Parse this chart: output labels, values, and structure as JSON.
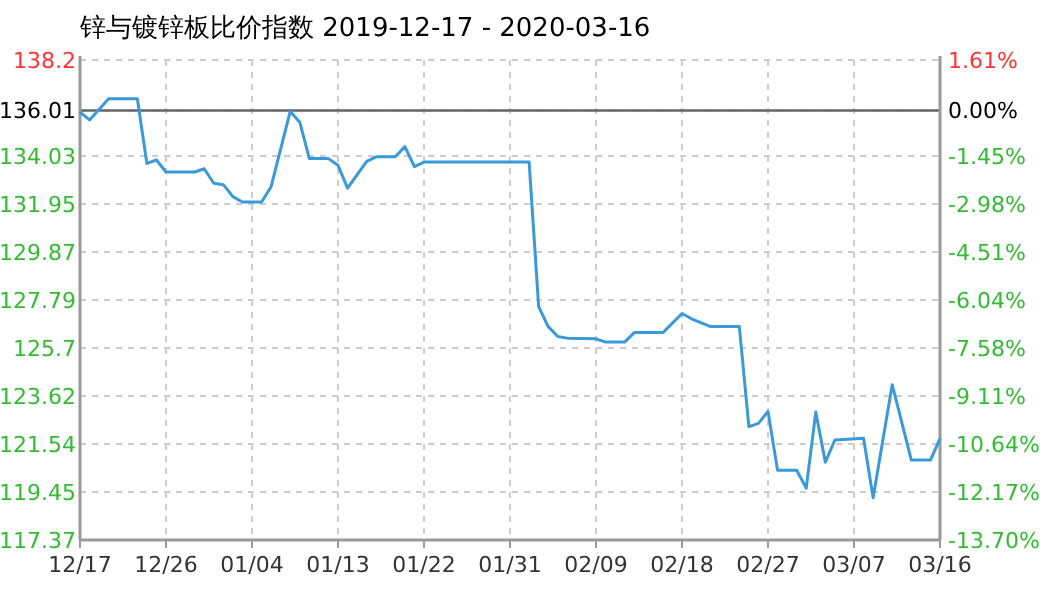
{
  "chart_data": {
    "type": "line",
    "title": "锌与镀锌板比价指数 2019-12-17 - 2020-03-16",
    "x": [
      "2019-12-17",
      "2019-12-18",
      "2019-12-20",
      "2019-12-23",
      "2019-12-24",
      "2019-12-25",
      "2019-12-26",
      "2019-12-29",
      "2019-12-30",
      "2019-12-31",
      "2020-01-01",
      "2020-01-02",
      "2020-01-03",
      "2020-01-05",
      "2020-01-06",
      "2020-01-08",
      "2020-01-09",
      "2020-01-10",
      "2020-01-12",
      "2020-01-13",
      "2020-01-14",
      "2020-01-16",
      "2020-01-17",
      "2020-01-19",
      "2020-01-20",
      "2020-01-21",
      "2020-01-22",
      "2020-02-02",
      "2020-02-03",
      "2020-02-04",
      "2020-02-05",
      "2020-02-06",
      "2020-02-09",
      "2020-02-10",
      "2020-02-12",
      "2020-02-13",
      "2020-02-16",
      "2020-02-18",
      "2020-02-19",
      "2020-02-21",
      "2020-02-24",
      "2020-02-25",
      "2020-02-26",
      "2020-02-27",
      "2020-02-28",
      "2020-03-01",
      "2020-03-02",
      "2020-03-03",
      "2020-03-04",
      "2020-03-05",
      "2020-03-08",
      "2020-03-09",
      "2020-03-11",
      "2020-03-13",
      "2020-03-15",
      "2020-03-16"
    ],
    "series": [
      {
        "color": "#3a9ad9",
        "values": [
          135.94,
          135.6,
          136.52,
          136.52,
          133.71,
          133.86,
          133.34,
          133.34,
          133.48,
          132.85,
          132.79,
          132.27,
          132.04,
          132.04,
          132.7,
          135.97,
          135.5,
          133.92,
          133.92,
          133.63,
          132.64,
          133.8,
          134.0,
          134.0,
          134.44,
          133.57,
          133.77,
          133.77,
          127.5,
          126.63,
          126.2,
          126.13,
          126.1,
          125.96,
          125.96,
          126.37,
          126.37,
          127.2,
          126.97,
          126.63,
          126.63,
          122.29,
          122.43,
          122.95,
          120.4,
          120.4,
          119.62,
          122.92,
          120.75,
          121.71,
          121.79,
          119.2,
          124.11,
          120.84,
          120.84,
          121.77
        ]
      }
    ],
    "xlim": [
      "2019-12-17",
      "2020-03-16"
    ],
    "xticks": [
      {
        "value": "2019-12-17",
        "label": "12/17"
      },
      {
        "value": "2019-12-26",
        "label": "12/26"
      },
      {
        "value": "2020-01-04",
        "label": "01/04"
      },
      {
        "value": "2020-01-13",
        "label": "01/13"
      },
      {
        "value": "2020-01-22",
        "label": "01/22"
      },
      {
        "value": "2020-01-31",
        "label": "01/31"
      },
      {
        "value": "2020-02-09",
        "label": "02/09"
      },
      {
        "value": "2020-02-18",
        "label": "02/18"
      },
      {
        "value": "2020-02-27",
        "label": "02/27"
      },
      {
        "value": "2020-03-07",
        "label": "03/07"
      },
      {
        "value": "2020-03-16",
        "label": "03/16"
      }
    ],
    "ylim": [
      117.37,
      138.2
    ],
    "yticks": [
      117.37,
      119.45,
      121.54,
      123.62,
      125.7,
      127.79,
      129.87,
      131.95,
      134.03,
      136.01,
      138.2
    ],
    "y2lim": [
      -13.7,
      1.61
    ],
    "y2ticks": [
      {
        "value": -13.7,
        "label": "-13.70%"
      },
      {
        "value": -12.17,
        "label": "-12.17%"
      },
      {
        "value": -10.64,
        "label": "-10.64%"
      },
      {
        "value": -9.11,
        "label": "-9.11%"
      },
      {
        "value": -7.58,
        "label": "-7.58%"
      },
      {
        "value": -6.04,
        "label": "-6.04%"
      },
      {
        "value": -4.51,
        "label": "-4.51%"
      },
      {
        "value": -2.98,
        "label": "-2.98%"
      },
      {
        "value": -1.45,
        "label": "-1.45%"
      },
      {
        "value": 0,
        "label": "0.00%"
      },
      {
        "value": 1.61,
        "label": "1.61%"
      }
    ],
    "ref_lines": [
      {
        "axis": "y",
        "value": 136.01,
        "color": "#666666"
      }
    ],
    "grid": true,
    "line_style": "solid",
    "marker": "none"
  }
}
